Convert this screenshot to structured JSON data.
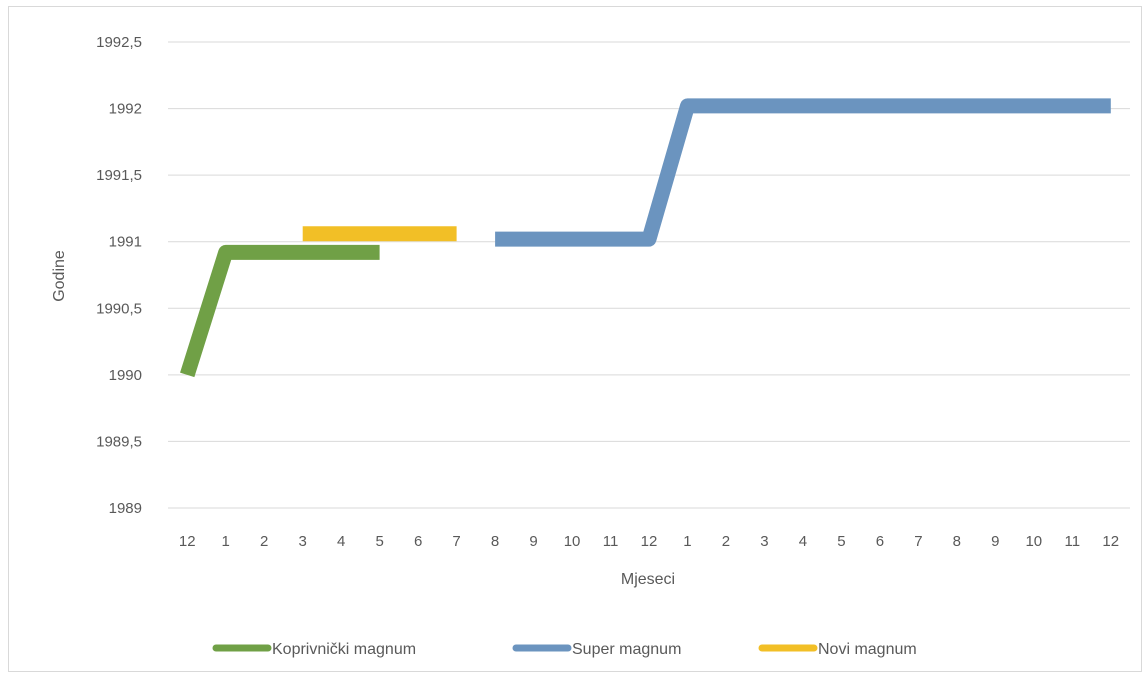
{
  "chart_data": {
    "type": "line",
    "title": "",
    "xlabel": "Mjeseci",
    "ylabel": "Godine",
    "categories": [
      "12",
      "1",
      "2",
      "3",
      "4",
      "5",
      "6",
      "7",
      "8",
      "9",
      "10",
      "11",
      "12",
      "1",
      "2",
      "3",
      "4",
      "5",
      "6",
      "7",
      "8",
      "9",
      "10",
      "11",
      "12"
    ],
    "yticks": [
      "1989",
      "1989,5",
      "1990",
      "1990,5",
      "1991",
      "1991,5",
      "1992",
      "1992,5"
    ],
    "ylim": [
      1989,
      1992.5
    ],
    "grid": true,
    "legend_position": "bottom",
    "series": [
      {
        "name": "Koprivnički magnum",
        "color": "#70a046",
        "values": [
          1990,
          1990.92,
          1990.92,
          1990.92,
          1990.92,
          1990.92,
          null,
          null,
          null,
          null,
          null,
          null,
          null,
          null,
          null,
          null,
          null,
          null,
          null,
          null,
          null,
          null,
          null,
          null,
          null
        ]
      },
      {
        "name": "Super magnum",
        "color": "#6b94bf",
        "values": [
          null,
          null,
          null,
          null,
          null,
          null,
          null,
          null,
          1991.02,
          1991.02,
          1991.02,
          1991.02,
          1991.02,
          1992.02,
          1992.02,
          1992.02,
          1992.02,
          1992.02,
          1992.02,
          1992.02,
          1992.02,
          1992.02,
          1992.02,
          1992.02,
          1992.02
        ]
      },
      {
        "name": "Novi magnum",
        "color": "#f2bf26",
        "values": [
          null,
          null,
          null,
          1991.06,
          1991.06,
          1991.06,
          1991.06,
          1991.06,
          null,
          null,
          null,
          null,
          null,
          null,
          null,
          null,
          null,
          null,
          null,
          null,
          null,
          null,
          null,
          null,
          null
        ]
      }
    ]
  }
}
